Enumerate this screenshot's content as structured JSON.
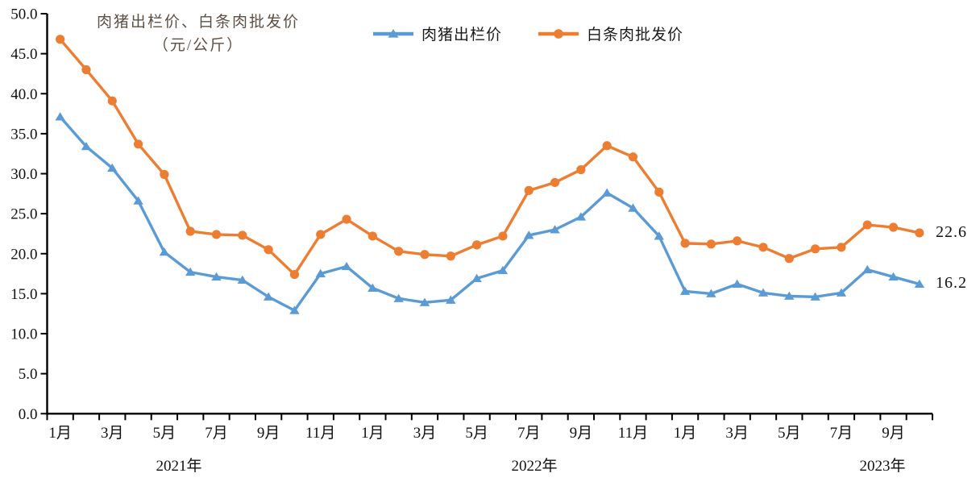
{
  "title": {
    "line1": "肉猪出栏价、白条肉批发价",
    "line2": "（元/公斤）"
  },
  "legend": {
    "items": [
      {
        "label": "肉猪出栏价",
        "color": "#5B9BD5",
        "marker": "triangle"
      },
      {
        "label": "白条肉批发价",
        "color": "#ED7D31",
        "marker": "circle"
      }
    ]
  },
  "chart_data": {
    "type": "line",
    "title": "肉猪出栏价、白条肉批发价（元/公斤）",
    "ylim": [
      0,
      50
    ],
    "y_ticks": [
      "0.0",
      "5.0",
      "10.0",
      "15.0",
      "20.0",
      "25.0",
      "30.0",
      "35.0",
      "40.0",
      "45.0",
      "50.0"
    ],
    "grid": false,
    "legend_position": "top",
    "x_tick_labels": [
      "1月",
      "3月",
      "5月",
      "7月",
      "9月",
      "11月",
      "1月",
      "3月",
      "5月",
      "7月",
      "9月",
      "11月",
      "1月",
      "3月",
      "5月",
      "7月",
      "9月"
    ],
    "year_labels": [
      "2021年",
      "2022年",
      "2023年"
    ],
    "months_per_year": [
      12,
      12,
      10
    ],
    "x_range": "2021年1月 - 2023年10月",
    "series": [
      {
        "name": "肉猪出栏价",
        "color": "#5B9BD5",
        "marker": "triangle",
        "end_label": "16.2",
        "values": [
          37.1,
          33.4,
          30.7,
          26.6,
          20.2,
          17.7,
          17.1,
          16.7,
          14.6,
          12.9,
          17.5,
          18.4,
          15.7,
          14.4,
          13.9,
          14.2,
          16.9,
          17.9,
          22.3,
          23.0,
          24.6,
          27.6,
          25.7,
          22.2,
          15.3,
          15.0,
          16.2,
          15.1,
          14.7,
          14.6,
          15.1,
          18.0,
          17.1,
          16.2
        ]
      },
      {
        "name": "白条肉批发价",
        "color": "#ED7D31",
        "marker": "circle",
        "end_label": "22.6",
        "values": [
          46.8,
          43.0,
          39.1,
          33.7,
          29.9,
          22.8,
          22.4,
          22.3,
          20.5,
          17.4,
          22.4,
          24.3,
          22.2,
          20.3,
          19.9,
          19.7,
          21.1,
          22.2,
          27.9,
          28.9,
          30.5,
          33.5,
          32.1,
          27.7,
          21.3,
          21.2,
          21.6,
          20.8,
          19.4,
          20.6,
          20.8,
          23.6,
          23.3,
          22.6
        ]
      }
    ]
  }
}
